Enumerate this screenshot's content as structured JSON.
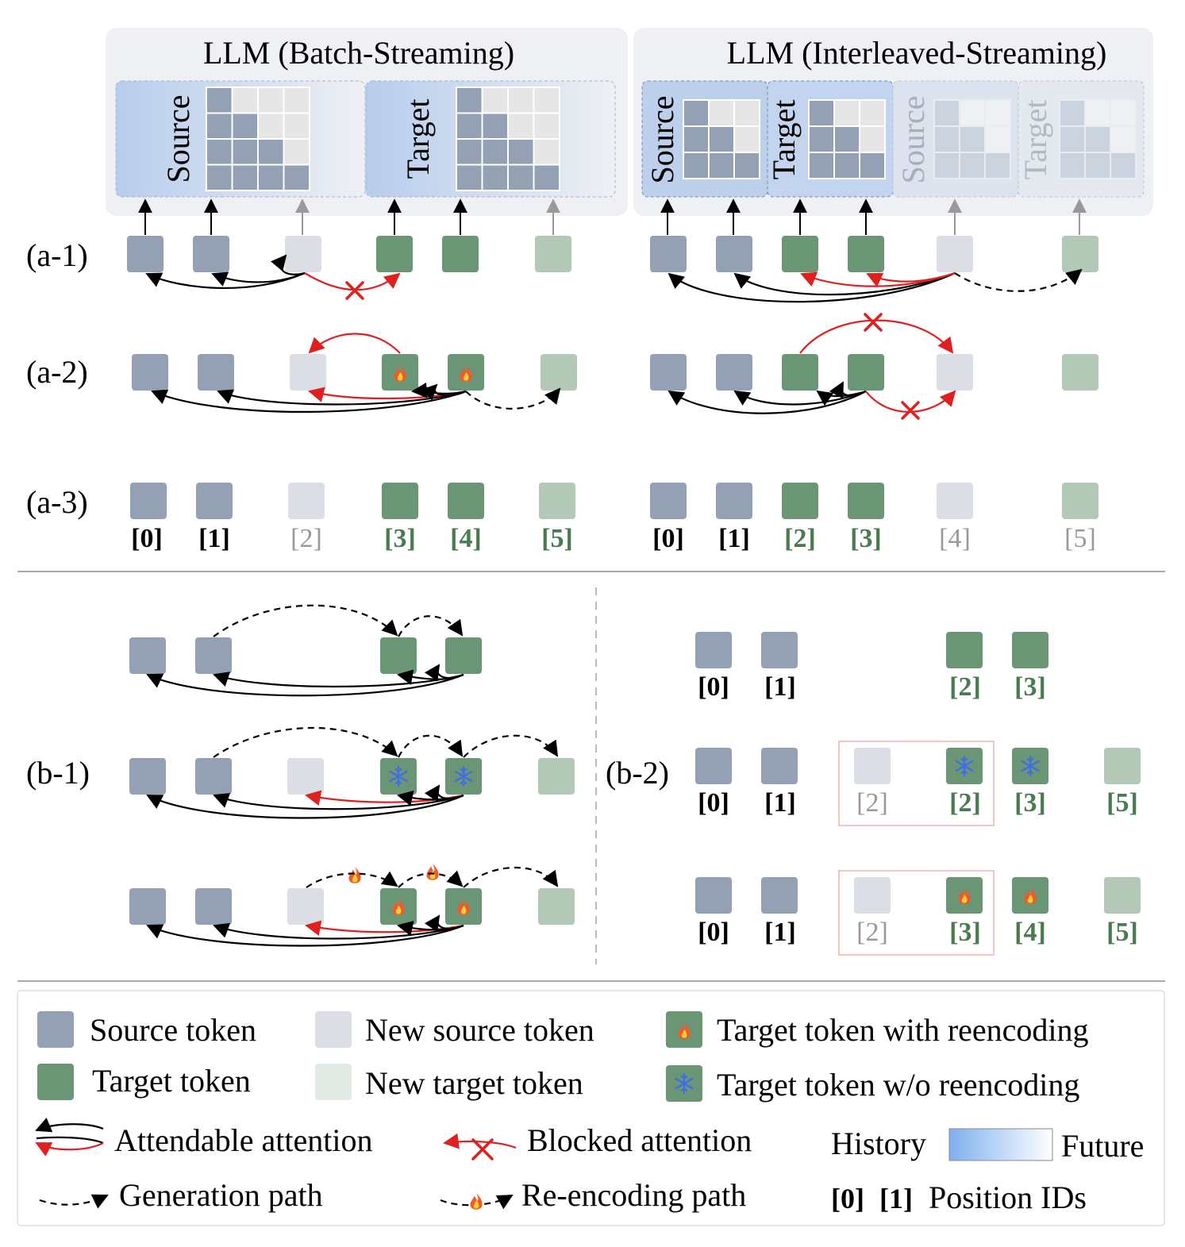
{
  "panels": {
    "batch_title": "LLM (Batch-Streaming)",
    "interleaved_title": "LLM (Interleaved-Streaming)",
    "source_label": "Source",
    "target_label": "Target"
  },
  "row_labels": {
    "a1": "(a-1)",
    "a2": "(a-2)",
    "a3": "(a-3)",
    "b1": "(b-1)",
    "b2": "(b-2)"
  },
  "a3_position_ids": {
    "batch": [
      "[0]",
      "[1]",
      "[2]",
      "[3]",
      "[4]",
      "[5]"
    ],
    "interleaved": [
      "[0]",
      "[1]",
      "[2]",
      "[3]",
      "[4]",
      "[5]"
    ]
  },
  "b2_position_ids": {
    "row1": [
      "[0]",
      "[1]",
      "[2]",
      "[3]"
    ],
    "row2": [
      "[0]",
      "[1]",
      "[2]",
      "[2]",
      "[3]",
      "[5]"
    ],
    "row3": [
      "[0]",
      "[1]",
      "[2]",
      "[3]",
      "[4]",
      "[5]"
    ]
  },
  "legend": {
    "source_token": "Source token",
    "new_source_token": "New source token",
    "target_reenc": "Target token with reencoding",
    "target_token": "Target token",
    "new_target_token": "New target token",
    "target_noreenc": "Target token w/o reencoding",
    "attendable": "Attendable attention",
    "blocked": "Blocked attention",
    "history": "History",
    "future": "Future",
    "generation": "Generation path",
    "reencoding": "Re-encoding path",
    "pos_id_0": "[0]",
    "pos_id_1": "[1]",
    "position_ids": "Position IDs"
  },
  "colors": {
    "source": "#94a0b3",
    "new_source": "#dcdee5",
    "target": "#6a9675",
    "new_target": "#b3c8b6",
    "attendable": "#000000",
    "blocked": "#e02020",
    "id_target": "#4a7a50",
    "id_new": "#999999",
    "frame_gray": "#eef0f3",
    "frame_blue": "#c0d3ec"
  }
}
